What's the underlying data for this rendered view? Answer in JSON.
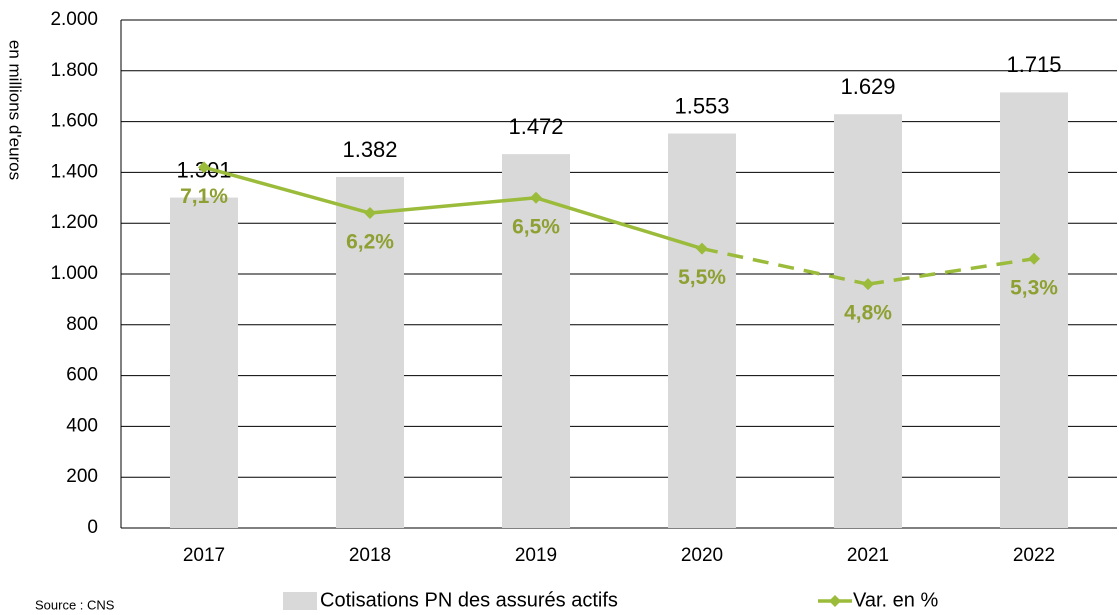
{
  "chart_data": {
    "type": "bar_line",
    "y_axis_label": "en millions d'euros",
    "source": "Source : CNS",
    "categories": [
      "2017",
      "2018",
      "2019",
      "2020",
      "2021",
      "2022"
    ],
    "series": [
      {
        "name": "Cotisations PN des assurés actifs",
        "type": "bar",
        "color": "#d9d9d9",
        "values": [
          1301,
          1382,
          1472,
          1553,
          1629,
          1715
        ],
        "value_labels": [
          "1.301",
          "1.382",
          "1.472",
          "1.553",
          "1.629",
          "1.715"
        ]
      },
      {
        "name": "Var. en %",
        "type": "line",
        "axis": "y2",
        "color": "#9bbb3b",
        "label_color": "#8fa033",
        "values": [
          7.1,
          6.2,
          6.5,
          5.5,
          4.8,
          5.3
        ],
        "value_labels": [
          "7,1%",
          "6,2%",
          "6,5%",
          "5,5%",
          "4,8%",
          "5,3%"
        ],
        "dashed_from": "2020"
      }
    ],
    "ylim": [
      0,
      2000
    ],
    "yticks": [
      0,
      200,
      400,
      600,
      800,
      {
        "value": 1000,
        "label": "1.000"
      },
      {
        "value": 1200,
        "label": "1.200"
      },
      {
        "value": 1400,
        "label": "1.400"
      },
      {
        "value": 1600,
        "label": "1.600"
      },
      {
        "value": 1800,
        "label": "1.800"
      },
      {
        "value": 2000,
        "label": "2.000"
      }
    ],
    "y2lim": [
      0,
      10
    ],
    "grid": true
  }
}
